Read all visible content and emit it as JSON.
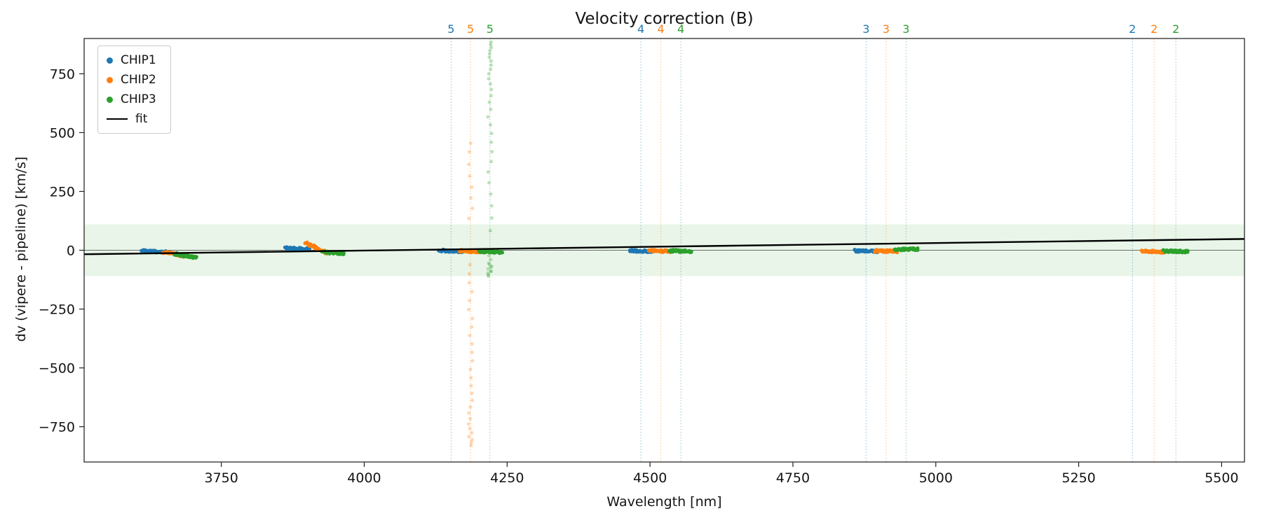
{
  "chart_data": {
    "type": "scatter",
    "title": "Velocity correction (B)",
    "xlabel": "Wavelength [nm]",
    "ylabel": "dv (vipere - pipeline) [km/s]",
    "xlim": [
      3510,
      5540
    ],
    "ylim": [
      -900,
      900
    ],
    "xticks": [
      3750,
      4000,
      4250,
      4500,
      4750,
      5000,
      5250,
      5500
    ],
    "yticks": [
      -750,
      -500,
      -250,
      0,
      250,
      500,
      750
    ],
    "grid": false,
    "legend_position": "upper-left",
    "band": {
      "ymin": -110,
      "ymax": 110,
      "color": "#2ca02c",
      "opacity": 0.1
    },
    "zero_line": {
      "y": 0,
      "color": "#404040"
    },
    "fit_line": {
      "label": "fit",
      "color": "#000000",
      "x": [
        3510,
        5540
      ],
      "y": [
        -17,
        48
      ]
    },
    "vlines": [
      {
        "x": 4152,
        "color": "#1f77b4",
        "label": "5"
      },
      {
        "x": 4186,
        "color": "#ff7f0e",
        "label": "5"
      },
      {
        "x": 4220,
        "color": "#2ca02c",
        "label": "5"
      },
      {
        "x": 4484,
        "color": "#1f77b4",
        "label": "4"
      },
      {
        "x": 4519,
        "color": "#ff7f0e",
        "label": "4"
      },
      {
        "x": 4554,
        "color": "#2ca02c",
        "label": "4"
      },
      {
        "x": 4878,
        "color": "#1f77b4",
        "label": "3"
      },
      {
        "x": 4913,
        "color": "#ff7f0e",
        "label": "3"
      },
      {
        "x": 4948,
        "color": "#2ca02c",
        "label": "3"
      },
      {
        "x": 5344,
        "color": "#1f77b4",
        "label": "2"
      },
      {
        "x": 5382,
        "color": "#ff7f0e",
        "label": "2"
      },
      {
        "x": 5420,
        "color": "#2ca02c",
        "label": "2"
      }
    ],
    "series": [
      {
        "name": "CHIP1",
        "color": "#1f77b4",
        "clusters": [
          {
            "x0": 3612,
            "x1": 3652,
            "y0": -3,
            "y1": -8,
            "n": 40
          },
          {
            "x0": 3862,
            "x1": 3905,
            "y0": 9,
            "y1": 4,
            "n": 40
          },
          {
            "x0": 4132,
            "x1": 4172,
            "y0": -1,
            "y1": -5,
            "n": 40
          },
          {
            "x0": 4464,
            "x1": 4504,
            "y0": -2,
            "y1": -5,
            "n": 40
          },
          {
            "x0": 4858,
            "x1": 4898,
            "y0": -2,
            "y1": -5,
            "n": 40
          }
        ],
        "outliers": null
      },
      {
        "name": "CHIP2",
        "color": "#ff7f0e",
        "clusters": [
          {
            "x0": 3648,
            "x1": 3684,
            "y0": -8,
            "y1": -24,
            "n": 36
          },
          {
            "x0": 3898,
            "x1": 3934,
            "y0": 32,
            "y1": -12,
            "n": 36
          },
          {
            "x0": 4166,
            "x1": 4206,
            "y0": -2,
            "y1": -6,
            "n": 40
          },
          {
            "x0": 4499,
            "x1": 4539,
            "y0": -2,
            "y1": -5,
            "n": 40
          },
          {
            "x0": 4893,
            "x1": 4933,
            "y0": -2,
            "y1": -5,
            "n": 40
          },
          {
            "x0": 5362,
            "x1": 5402,
            "y0": -4,
            "y1": -7,
            "n": 40
          }
        ],
        "outliers": {
          "x": 4186,
          "jitter": 7,
          "y": [
            -830,
            -818,
            -806,
            -792,
            -776,
            -758,
            -738,
            -716,
            -692,
            -666,
            -638,
            -608,
            -576,
            -542,
            -506,
            -470,
            -434,
            -398,
            -362,
            -326,
            -290,
            -252,
            -214,
            -176,
            -138,
            -100,
            -62,
            135,
            178,
            222,
            268,
            315,
            365,
            418,
            455
          ]
        }
      },
      {
        "name": "CHIP3",
        "color": "#2ca02c",
        "clusters": [
          {
            "x0": 3668,
            "x1": 3706,
            "y0": -15,
            "y1": -32,
            "n": 36
          },
          {
            "x0": 3928,
            "x1": 3964,
            "y0": -8,
            "y1": -14,
            "n": 36
          },
          {
            "x0": 4200,
            "x1": 4240,
            "y0": -4,
            "y1": -9,
            "n": 40
          },
          {
            "x0": 4534,
            "x1": 4574,
            "y0": -2,
            "y1": -5,
            "n": 40
          },
          {
            "x0": 4928,
            "x1": 4968,
            "y0": 2,
            "y1": 5,
            "n": 40
          },
          {
            "x0": 5400,
            "x1": 5440,
            "y0": -3,
            "y1": -6,
            "n": 40
          }
        ],
        "outliers": {
          "x": 4220,
          "jitter": 7,
          "y": [
            885,
            874,
            862,
            849,
            835,
            820,
            804,
            787,
            769,
            750,
            729,
            707,
            683,
            657,
            629,
            599,
            567,
            533,
            497,
            459,
            419,
            377,
            333,
            287,
            239,
            189,
            137,
            83,
            -22,
            -40,
            -55,
            -68,
            -79,
            -89,
            -97,
            -104,
            -110,
            -72,
            -90,
            -60
          ]
        }
      }
    ]
  }
}
